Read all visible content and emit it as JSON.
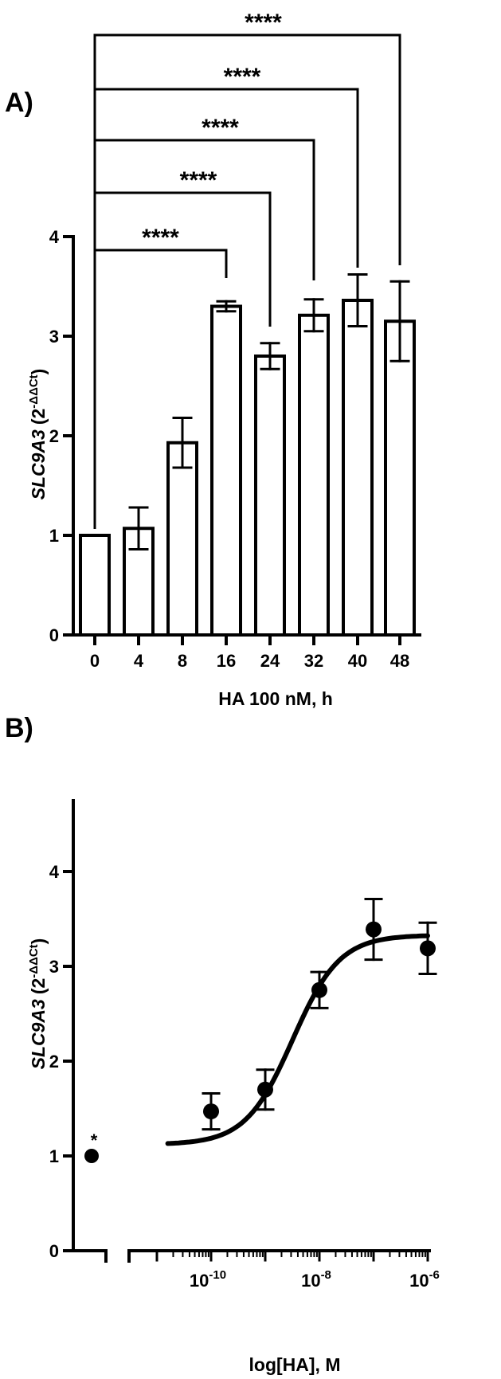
{
  "colors": {
    "ink": "#000000",
    "bar_fill": "#ffffff",
    "background": "#ffffff"
  },
  "chart_data": [
    {
      "panel": "A)",
      "type": "bar",
      "xlabel": "HA 100 nM, h",
      "ylabel_italic": "SLC9A3",
      "ylabel_unit": "(2",
      "ylabel_exp": "-ΔΔCt",
      "ylabel_close": ")",
      "ylim": [
        0,
        4
      ],
      "yticks": [
        "0",
        "1",
        "2",
        "3",
        "4"
      ],
      "categories": [
        "0",
        "4",
        "8",
        "16",
        "24",
        "32",
        "40",
        "48"
      ],
      "values": [
        1.0,
        1.07,
        1.93,
        3.3,
        2.8,
        3.21,
        3.36,
        3.15
      ],
      "errors": [
        0.0,
        0.21,
        0.25,
        0.05,
        0.13,
        0.16,
        0.26,
        0.4
      ],
      "grid": false,
      "comparisons": [
        {
          "from": "0",
          "to": "16",
          "label": "****"
        },
        {
          "from": "0",
          "to": "24",
          "label": "****"
        },
        {
          "from": "0",
          "to": "32",
          "label": "****"
        },
        {
          "from": "0",
          "to": "40",
          "label": "****"
        },
        {
          "from": "0",
          "to": "48",
          "label": "****"
        }
      ]
    },
    {
      "panel": "B)",
      "type": "scatter",
      "xlabel": "log[HA], M",
      "ylabel_italic": "SLC9A3",
      "ylabel_unit": "(2",
      "ylabel_exp": "-ΔΔCt",
      "ylabel_close": ")",
      "ylim": [
        0,
        4.5
      ],
      "yticks": [
        "0",
        "1",
        "2",
        "3",
        "4"
      ],
      "x_scale": "log",
      "xlim": [
        1e-11,
        1e-06
      ],
      "xtick_labels": [
        {
          "base": "10",
          "exp": "-10"
        },
        {
          "base": "10",
          "exp": "-8"
        },
        {
          "base": "10",
          "exp": "-6"
        }
      ],
      "control_point": {
        "x": "vehicle (0)",
        "y": 1.0,
        "error": 0.0,
        "marker": "*"
      },
      "points": [
        {
          "x": 1e-10,
          "y": 1.47,
          "error": 0.19
        },
        {
          "x": 1e-09,
          "y": 1.7,
          "error": 0.21
        },
        {
          "x": 1e-08,
          "y": 2.75,
          "error": 0.19
        },
        {
          "x": 1e-07,
          "y": 3.39,
          "error": 0.32
        },
        {
          "x": 1e-06,
          "y": 3.19,
          "error": 0.27
        }
      ],
      "fit": {
        "model": "sigmoidal dose-response",
        "bottom": 1.12,
        "top": 3.33,
        "ec50": 3.2e-09,
        "hill": 1.0
      },
      "grid": false
    }
  ]
}
